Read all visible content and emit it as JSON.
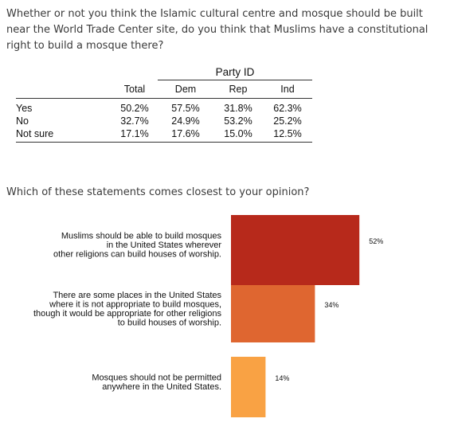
{
  "question_1": "Whether or not you think the Islamic cultural centre and mosque should be built near the World Trade Center site, do you think that Muslims have a constitutional right to build a mosque there?",
  "question_2": "Which of these statements comes closest to your opinion?",
  "table": {
    "group_title": "Party ID",
    "columns": [
      "Total",
      "Dem",
      "Rep",
      "Ind"
    ],
    "rows": [
      {
        "label": "Yes",
        "values": [
          "50.2%",
          "57.5%",
          "31.8%",
          "62.3%"
        ]
      },
      {
        "label": "No",
        "values": [
          "32.7%",
          "24.9%",
          "53.2%",
          "25.2%"
        ]
      },
      {
        "label": "Not sure",
        "values": [
          "17.1%",
          "17.6%",
          "15.0%",
          "12.5%"
        ]
      }
    ]
  },
  "chart_data": {
    "type": "bar",
    "orientation": "horizontal",
    "categories": [
      [
        "Muslims should be able to build mosques",
        "in the United States wherever",
        "other religions can build houses of worship."
      ],
      [
        "There are some places in the United States",
        "where it is not appropriate to build mosques,",
        "though it would be appropriate for other religions",
        "to build houses of worship."
      ],
      [
        "Mosques should not be permitted",
        "anywhere in the United States."
      ]
    ],
    "values": [
      52,
      34,
      14
    ],
    "value_labels": [
      "52%",
      "34%",
      "14%"
    ],
    "colors": [
      "#b7291b",
      "#df6630",
      "#f9a244"
    ],
    "xlim": [
      0,
      100
    ],
    "grid": false
  }
}
